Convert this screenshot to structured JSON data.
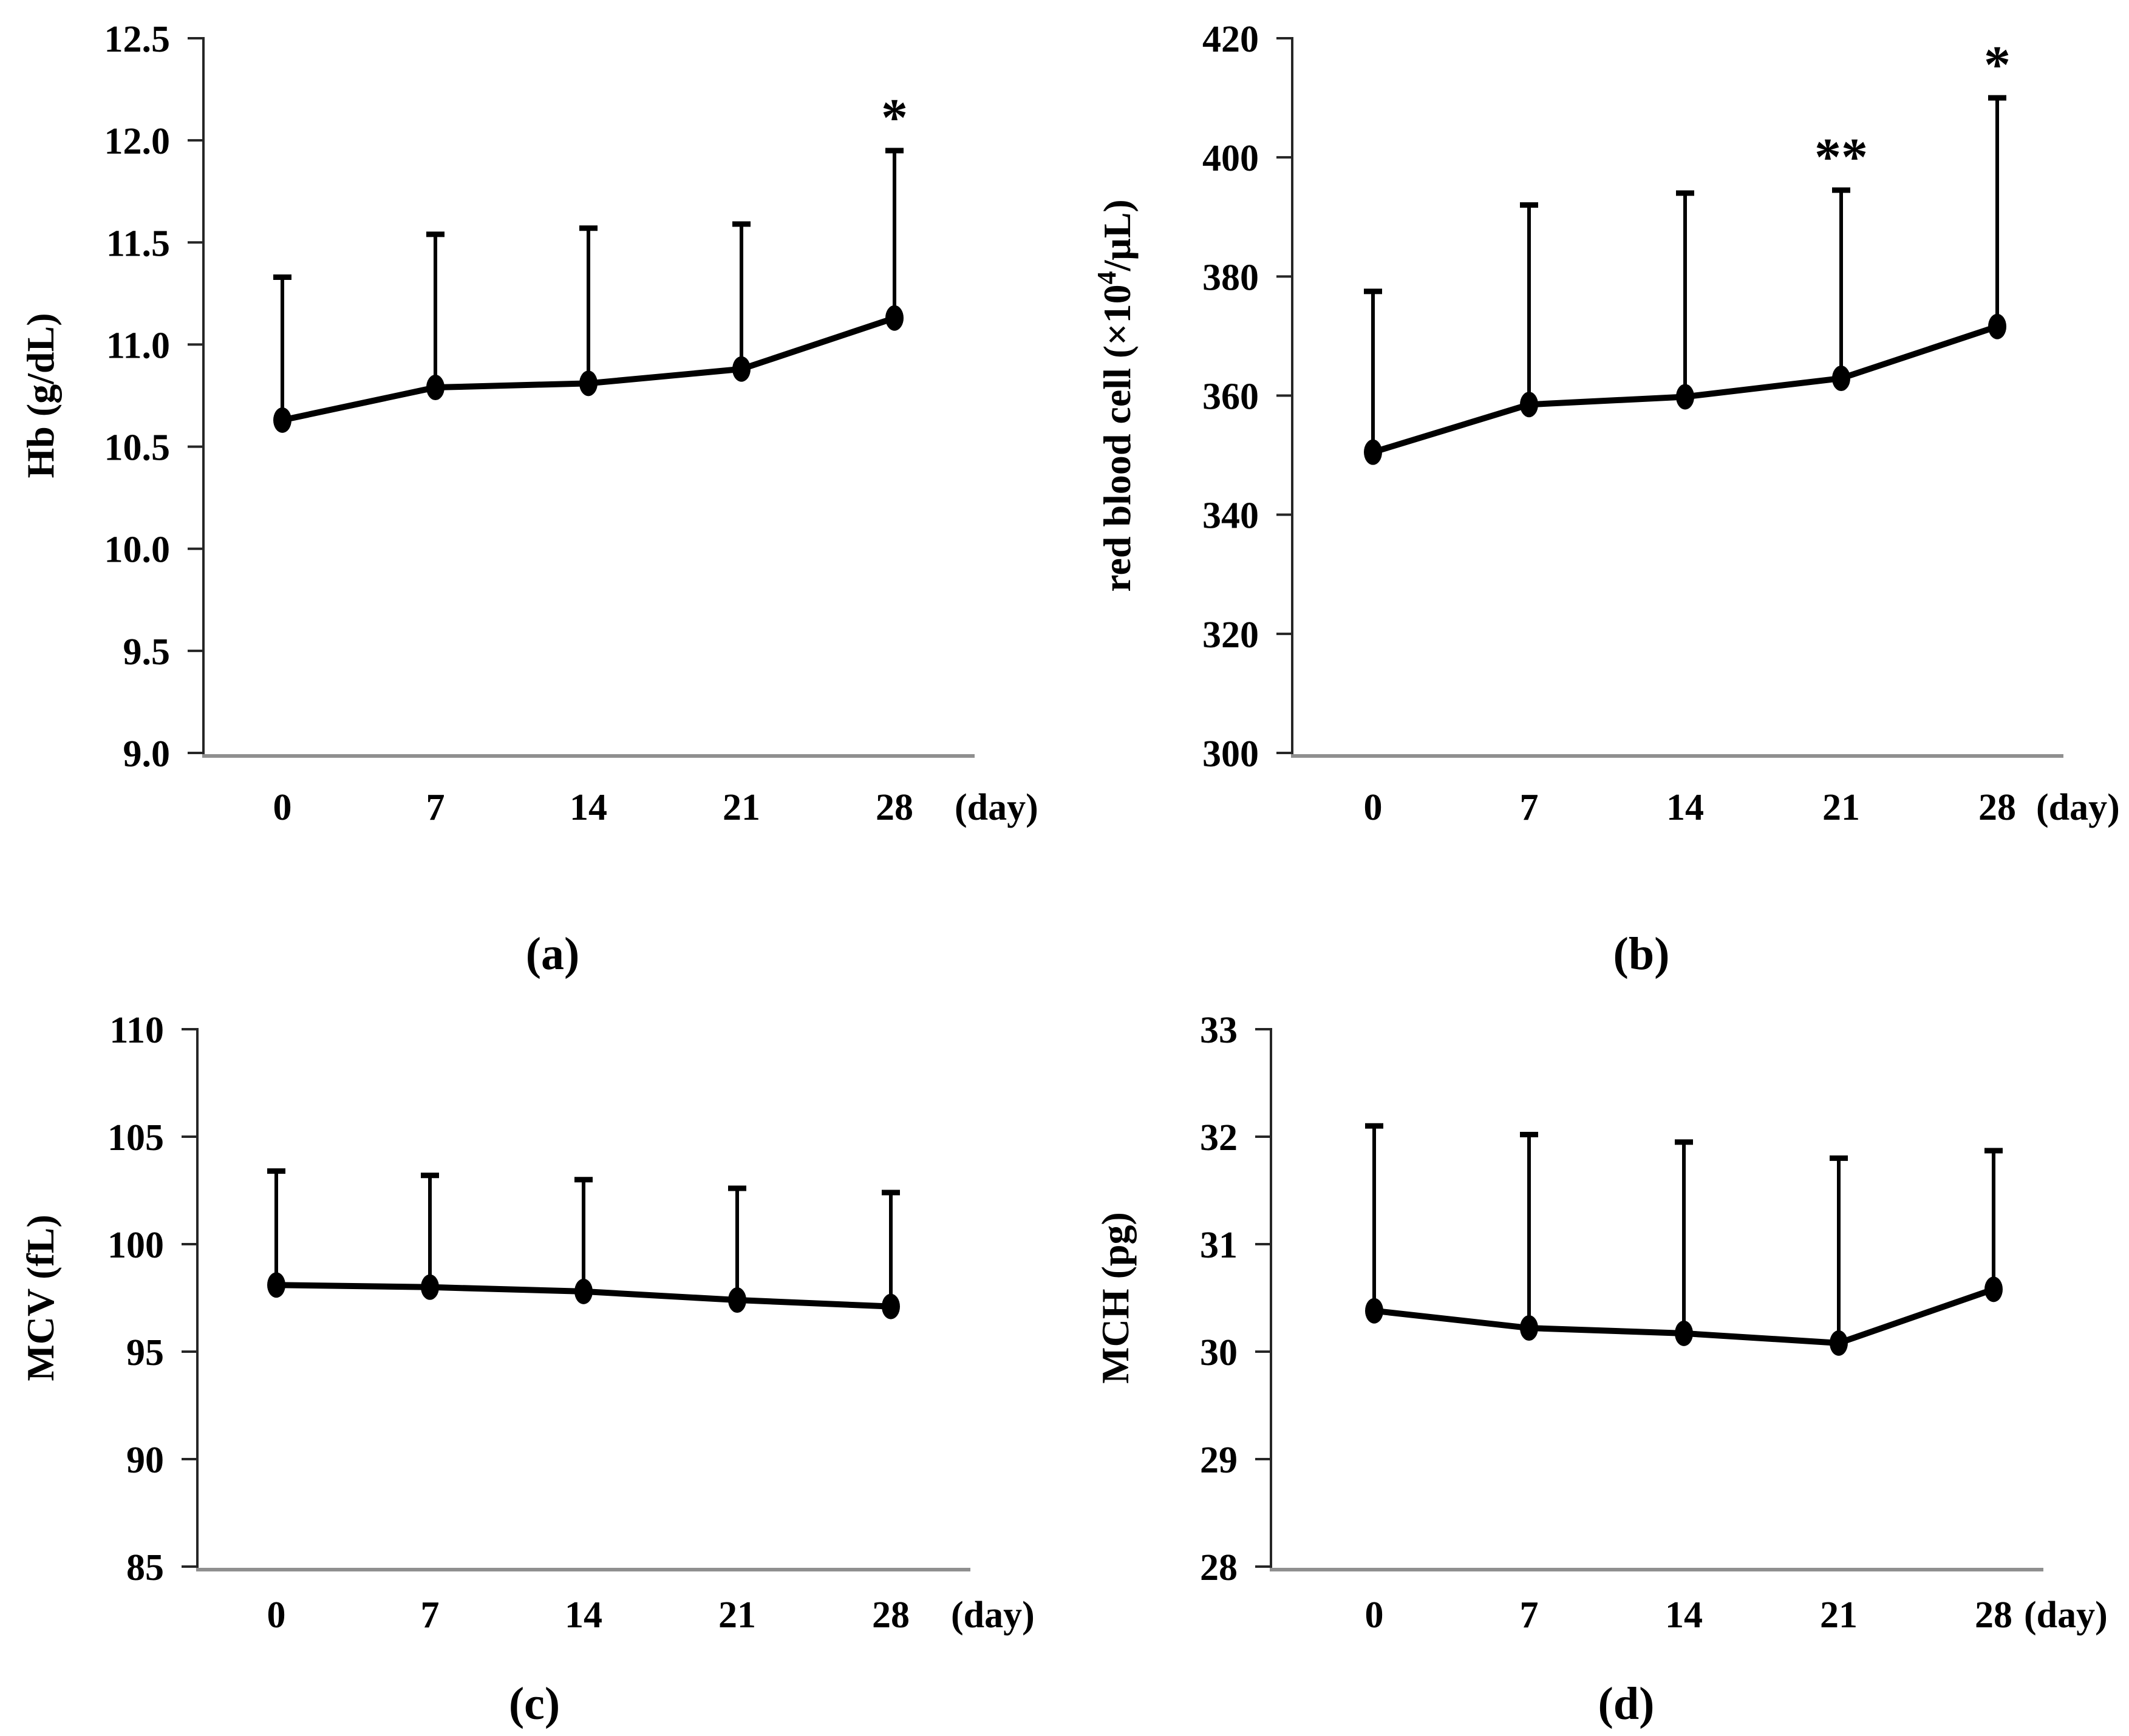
{
  "figure": {
    "description": "Four-panel line figure of hematology parameters over 28 days (mean with upper SD error bars)",
    "panel_letters": [
      "(a)",
      "(b)",
      "(c)",
      "(d)"
    ]
  },
  "style": {
    "data_color": "#000000",
    "y_axis_color": "#262626",
    "x_axis_color": "#8f8f8f",
    "background": "#ffffff"
  },
  "chart_data": [
    {
      "id": "a",
      "type": "line",
      "caption": "(a)",
      "title": "",
      "ylabel": "Hb (g/dL)",
      "xlabel": "(day)",
      "x_values": [
        0,
        7,
        14,
        21,
        28
      ],
      "x_categories": [
        "0",
        "7",
        "14",
        "21",
        "28"
      ],
      "ylim": [
        9.0,
        12.5
      ],
      "ytick_labels": [
        "9.0",
        "9.5",
        "10.0",
        "10.5",
        "11.0",
        "11.5",
        "12.0",
        "12.5"
      ],
      "grid": false,
      "legend": "none",
      "error_bars": "upper-only",
      "series": [
        {
          "name": "Hb mean",
          "marker": "filled-circle",
          "values": [
            10.63,
            10.79,
            10.81,
            10.88,
            11.13
          ],
          "upper_error_top": [
            11.33,
            11.54,
            11.57,
            11.59,
            11.95
          ]
        }
      ],
      "annotations": [
        {
          "x": 28,
          "text": "*"
        }
      ]
    },
    {
      "id": "b",
      "type": "line",
      "caption": "(b)",
      "title": "",
      "ylabel": "red blood cell (×10⁴/μL)",
      "ylabel_parts": [
        {
          "t": "red blood cell (×10"
        },
        {
          "t": "4",
          "sup": true
        },
        {
          "t": "/μL)"
        }
      ],
      "xlabel": "(day)",
      "x_values": [
        0,
        7,
        14,
        21,
        28
      ],
      "x_categories": [
        "0",
        "7",
        "14",
        "21",
        "28"
      ],
      "ylim": [
        300,
        420
      ],
      "ytick_labels": [
        "300",
        "320",
        "340",
        "360",
        "380",
        "400",
        "420"
      ],
      "grid": false,
      "legend": "none",
      "error_bars": "upper-only",
      "series": [
        {
          "name": "red blood cell mean",
          "marker": "filled-circle",
          "values": [
            350.5,
            358.5,
            359.8,
            362.9,
            371.6
          ],
          "upper_error_top": [
            377.5,
            392,
            394,
            394.5,
            410
          ]
        }
      ],
      "annotations": [
        {
          "x": 21,
          "text": "**"
        },
        {
          "x": 28,
          "text": "*"
        }
      ]
    },
    {
      "id": "c",
      "type": "line",
      "caption": "(c)",
      "title": "",
      "ylabel": "MCV (fL)",
      "xlabel": "(day)",
      "x_values": [
        0,
        7,
        14,
        21,
        28
      ],
      "x_categories": [
        "0",
        "7",
        "14",
        "21",
        "28"
      ],
      "ylim": [
        85,
        110
      ],
      "ytick_labels": [
        "85",
        "90",
        "95",
        "100",
        "105",
        "110"
      ],
      "grid": false,
      "legend": "none",
      "error_bars": "upper-only",
      "series": [
        {
          "name": "MCV mean",
          "marker": "filled-circle",
          "values": [
            98.1,
            98.0,
            97.8,
            97.4,
            97.1
          ],
          "upper_error_top": [
            103.4,
            103.2,
            103.0,
            102.6,
            102.4
          ]
        }
      ],
      "annotations": []
    },
    {
      "id": "d",
      "type": "line",
      "caption": "(d)",
      "title": "",
      "ylabel": "MCH (pg)",
      "xlabel": "(day)",
      "x_values": [
        0,
        7,
        14,
        21,
        28
      ],
      "x_categories": [
        "0",
        "7",
        "14",
        "21",
        "28"
      ],
      "ylim": [
        28,
        33
      ],
      "ytick_labels": [
        "28",
        "29",
        "30",
        "31",
        "32",
        "33"
      ],
      "grid": false,
      "legend": "none",
      "error_bars": "upper-only",
      "series": [
        {
          "name": "MCH mean",
          "marker": "filled-circle",
          "values": [
            30.38,
            30.22,
            30.17,
            30.08,
            30.58
          ],
          "upper_error_top": [
            32.1,
            32.02,
            31.95,
            31.8,
            31.87
          ]
        }
      ],
      "annotations": []
    }
  ]
}
